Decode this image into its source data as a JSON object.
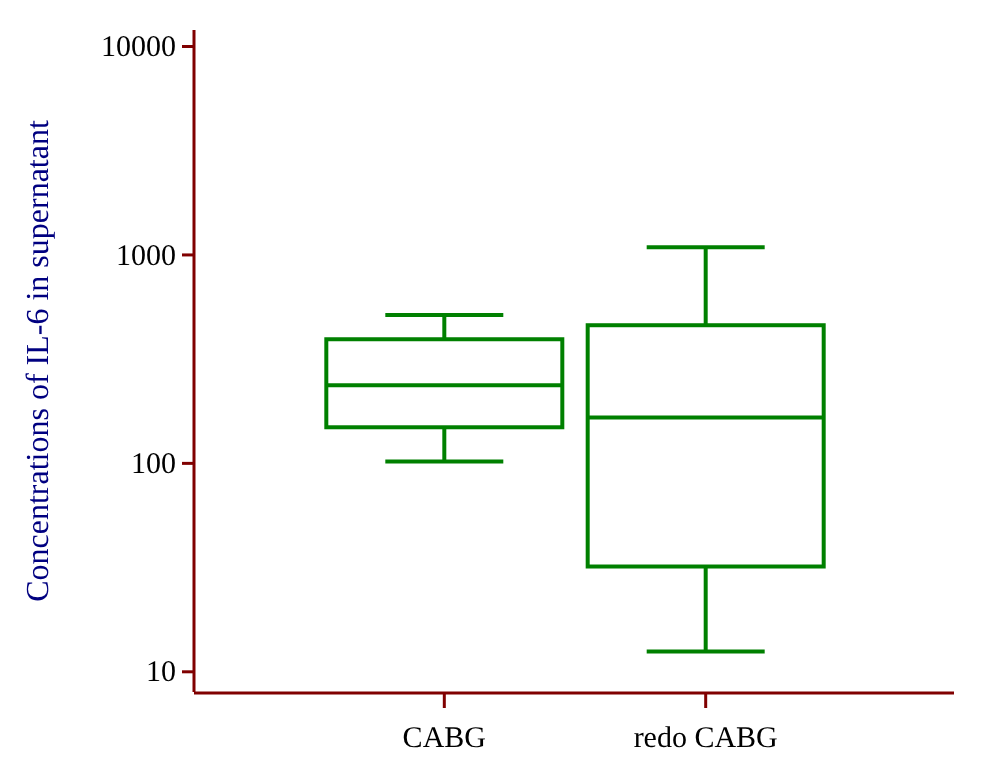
{
  "chart_data": {
    "type": "box",
    "ylabel": "Concentrations of IL-6 in supernatant",
    "categories": [
      "CABG",
      "redo CABG"
    ],
    "log": true,
    "ylim": [
      8,
      12000
    ],
    "yticks": [
      10,
      100,
      1000,
      10000
    ],
    "grid": false,
    "series": [
      {
        "color": "#008000",
        "boxes": [
          {
            "low": 102,
            "q1": 149,
            "median": 237,
            "q3": 394,
            "high": 515
          },
          {
            "low": 12.5,
            "q1": 32,
            "median": 166,
            "q3": 460,
            "high": 1090
          }
        ]
      }
    ]
  }
}
